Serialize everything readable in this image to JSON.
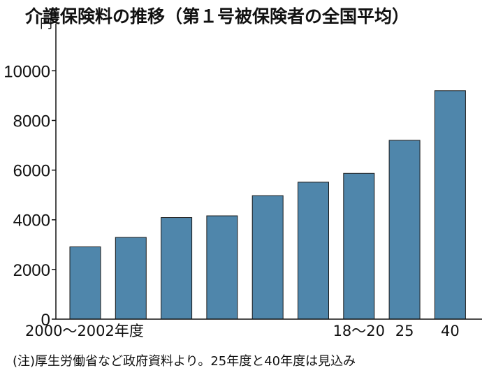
{
  "title": "介護保険料の推移（第１号被保険者の全国平均）",
  "note": "(注)厚生労働省など政府資料より。25年度と40年度は見込み",
  "colors": {
    "bar": "#4f86ab",
    "bar_edge": "#1a1a1a",
    "axis": "#111111"
  },
  "chart_data": {
    "type": "bar",
    "title": "介護保険料の推移（第１号被保険者の全国平均）",
    "unit": "円",
    "xlabel": "",
    "ylabel": "円",
    "ylim": [
      0,
      11500
    ],
    "yticks": [
      0,
      2000,
      4000,
      6000,
      8000,
      10000
    ],
    "grid": false,
    "categories": [
      "2000〜2002年度",
      "",
      "",
      "",
      "",
      "",
      "18〜20",
      "25",
      "40"
    ],
    "values": [
      2911,
      3293,
      4090,
      4160,
      4972,
      5514,
      5869,
      7200,
      9200
    ]
  }
}
